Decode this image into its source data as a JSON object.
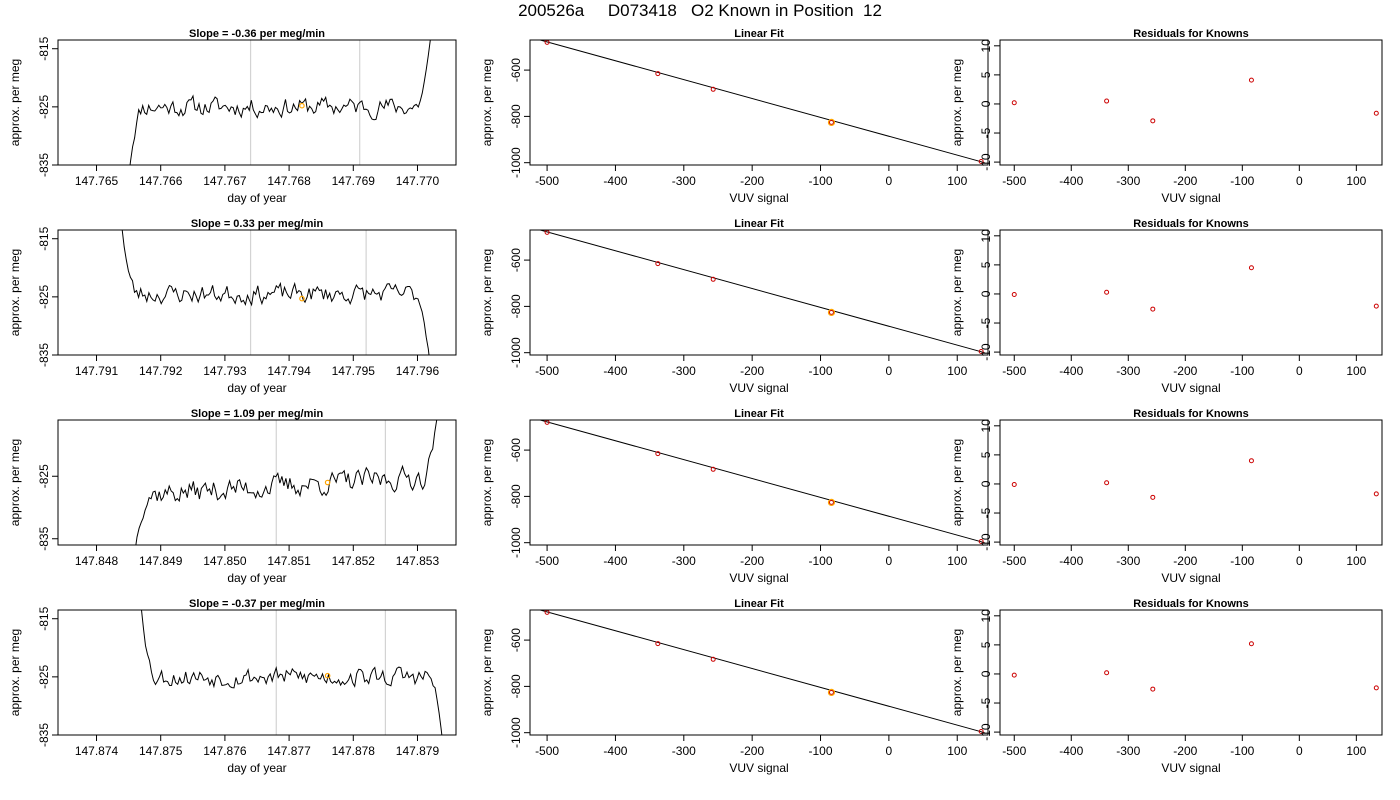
{
  "title": "200526a     D073418   O2 Known in Position  12",
  "colors": {
    "trace": "#000000",
    "marker": "#FFA500",
    "point": "#CC0000",
    "vline": "#D3D3D3",
    "axis": "#000000"
  },
  "chart_data": [
    {
      "type": "line",
      "panel": "time-series",
      "row": 1,
      "title": "Slope =  -0.36  per meg/min",
      "xlabel": "day of year",
      "ylabel": "approx. per meg",
      "xlim": [
        147.7644,
        147.7706
      ],
      "ylim": [
        -835,
        -813.5
      ],
      "xticks": [
        147.765,
        147.766,
        147.767,
        147.768,
        147.769,
        147.77
      ],
      "xtick_labels": [
        "147.765",
        "147.766",
        "147.767",
        "147.768",
        "147.769",
        "147.770"
      ],
      "yticks": [
        -815,
        -825,
        -835
      ],
      "ytick_labels": [
        "-815",
        "-825",
        "-835"
      ],
      "vlines": [
        147.7674,
        147.7691
      ],
      "series": [
        {
          "x_start": 147.7655,
          "x_end": 147.7702,
          "mean": -825.0,
          "amp": 2.0,
          "trend": 0.0,
          "start": -837,
          "end": -813.5,
          "seed": 11
        }
      ],
      "marker": {
        "x": 147.7682,
        "y": -824.8
      }
    },
    {
      "type": "scatter",
      "panel": "linear-fit",
      "row": 1,
      "title": "Linear Fit",
      "xlabel": "VUV signal",
      "ylabel": "approx. per meg",
      "xlim": [
        -525,
        145
      ],
      "ylim": [
        -1010,
        -470
      ],
      "xticks": [
        -500,
        -400,
        -300,
        -200,
        -100,
        0,
        100
      ],
      "xtick_labels": [
        "-500",
        "-400",
        "-300",
        "-200",
        "-100",
        "0",
        "100"
      ],
      "yticks": [
        -600,
        -800,
        -1000
      ],
      "ytick_labels": [
        "-600",
        "-800",
        "-1000"
      ],
      "x": [
        -500,
        -338,
        -257,
        -84,
        135
      ],
      "y": [
        -480,
        -615,
        -683,
        -826,
        -995
      ],
      "fit_line": {
        "x": [
          -510,
          140
        ],
        "y": [
          -470,
          -1000
        ]
      },
      "highlight": {
        "x": -84,
        "y": -826
      }
    },
    {
      "type": "scatter",
      "panel": "residuals",
      "row": 1,
      "title": "Residuals for Knowns",
      "xlabel": "VUV signal",
      "ylabel": "approx. per meg",
      "xlim": [
        -525,
        145
      ],
      "ylim": [
        -10.5,
        11
      ],
      "xticks": [
        -500,
        -400,
        -300,
        -200,
        -100,
        0,
        100
      ],
      "xtick_labels": [
        "-500",
        "-400",
        "-300",
        "-200",
        "-100",
        "0",
        "100"
      ],
      "yticks": [
        10,
        5,
        0,
        -5,
        -10
      ],
      "ytick_labels": [
        "10",
        "5",
        "0",
        "-5",
        "-10"
      ],
      "x": [
        -500,
        -338,
        -257,
        -84,
        135
      ],
      "y": [
        0.2,
        0.5,
        -2.9,
        4.1,
        -1.6
      ]
    },
    {
      "type": "line",
      "panel": "time-series",
      "row": 2,
      "title": "Slope =  0.33  per meg/min",
      "xlabel": "day of year",
      "ylabel": "approx. per meg",
      "xlim": [
        147.7904,
        147.7966
      ],
      "ylim": [
        -835,
        -813.5
      ],
      "xticks": [
        147.791,
        147.792,
        147.793,
        147.794,
        147.795,
        147.796
      ],
      "xtick_labels": [
        "147.791",
        "147.792",
        "147.793",
        "147.794",
        "147.795",
        "147.796"
      ],
      "yticks": [
        -815,
        -825,
        -835
      ],
      "ytick_labels": [
        "-815",
        "-825",
        "-835"
      ],
      "vlines": [
        147.7934,
        147.7952
      ],
      "series": [
        {
          "x_start": 147.7914,
          "x_end": 147.7962,
          "mean": -824.5,
          "amp": 2.0,
          "trend": 0.0,
          "start": -813.5,
          "end": -837,
          "seed": 23
        }
      ],
      "marker": {
        "x": 147.7942,
        "y": -825.3
      }
    },
    {
      "type": "scatter",
      "panel": "linear-fit",
      "row": 2,
      "title": "Linear Fit",
      "xlabel": "VUV signal",
      "ylabel": "approx. per meg",
      "xlim": [
        -525,
        145
      ],
      "ylim": [
        -1010,
        -470
      ],
      "xticks": [
        -500,
        -400,
        -300,
        -200,
        -100,
        0,
        100
      ],
      "xtick_labels": [
        "-500",
        "-400",
        "-300",
        "-200",
        "-100",
        "0",
        "100"
      ],
      "yticks": [
        -600,
        -800,
        -1000
      ],
      "ytick_labels": [
        "-600",
        "-800",
        "-1000"
      ],
      "x": [
        -500,
        -338,
        -257,
        -84,
        135
      ],
      "y": [
        -480,
        -615,
        -683,
        -826,
        -995
      ],
      "fit_line": {
        "x": [
          -510,
          140
        ],
        "y": [
          -470,
          -1000
        ]
      },
      "highlight": {
        "x": -84,
        "y": -826
      }
    },
    {
      "type": "scatter",
      "panel": "residuals",
      "row": 2,
      "title": "Residuals for Knowns",
      "xlabel": "VUV signal",
      "ylabel": "approx. per meg",
      "xlim": [
        -525,
        145
      ],
      "ylim": [
        -10.5,
        11
      ],
      "xticks": [
        -500,
        -400,
        -300,
        -200,
        -100,
        0,
        100
      ],
      "xtick_labels": [
        "-500",
        "-400",
        "-300",
        "-200",
        "-100",
        "0",
        "100"
      ],
      "yticks": [
        10,
        5,
        0,
        -5,
        -10
      ],
      "ytick_labels": [
        "10",
        "5",
        "0",
        "-5",
        "-10"
      ],
      "x": [
        -500,
        -338,
        -257,
        -84,
        135
      ],
      "y": [
        -0.1,
        0.3,
        -2.6,
        4.5,
        -2.1
      ]
    },
    {
      "type": "line",
      "panel": "time-series",
      "row": 3,
      "title": "Slope =  1.09  per meg/min",
      "xlabel": "day of year",
      "ylabel": "approx. per meg",
      "xlim": [
        147.8474,
        147.8536
      ],
      "ylim": [
        -836,
        -816
      ],
      "xticks": [
        147.848,
        147.849,
        147.85,
        147.851,
        147.852,
        147.853
      ],
      "xtick_labels": [
        "147.848",
        "147.849",
        "147.850",
        "147.851",
        "147.852",
        "147.853"
      ],
      "yticks": [
        -825,
        -835
      ],
      "ytick_labels": [
        "-825",
        "-835"
      ],
      "vlines": [
        147.8508,
        147.8525
      ],
      "series": [
        {
          "x_start": 147.8486,
          "x_end": 147.8533,
          "mean": -826.5,
          "amp": 2.2,
          "trend": 3.0,
          "start": -837,
          "end": -816,
          "seed": 37
        }
      ],
      "marker": {
        "x": 147.8516,
        "y": -826.0
      }
    },
    {
      "type": "scatter",
      "panel": "linear-fit",
      "row": 3,
      "title": "Linear Fit",
      "xlabel": "VUV signal",
      "ylabel": "approx. per meg",
      "xlim": [
        -525,
        145
      ],
      "ylim": [
        -1010,
        -470
      ],
      "xticks": [
        -500,
        -400,
        -300,
        -200,
        -100,
        0,
        100
      ],
      "xtick_labels": [
        "-500",
        "-400",
        "-300",
        "-200",
        "-100",
        "0",
        "100"
      ],
      "yticks": [
        -600,
        -800,
        -1000
      ],
      "ytick_labels": [
        "-600",
        "-800",
        "-1000"
      ],
      "x": [
        -500,
        -338,
        -257,
        -84,
        135
      ],
      "y": [
        -480,
        -615,
        -683,
        -826,
        -995
      ],
      "fit_line": {
        "x": [
          -510,
          140
        ],
        "y": [
          -470,
          -1000
        ]
      },
      "highlight": {
        "x": -84,
        "y": -826
      }
    },
    {
      "type": "scatter",
      "panel": "residuals",
      "row": 3,
      "title": "Residuals for Knowns",
      "xlabel": "VUV signal",
      "ylabel": "approx. per meg",
      "xlim": [
        -525,
        145
      ],
      "ylim": [
        -10.5,
        11
      ],
      "xticks": [
        -500,
        -400,
        -300,
        -200,
        -100,
        0,
        100
      ],
      "xtick_labels": [
        "-500",
        "-400",
        "-300",
        "-200",
        "-100",
        "0",
        "100"
      ],
      "yticks": [
        10,
        5,
        0,
        -5,
        -10
      ],
      "ytick_labels": [
        "10",
        "5",
        "0",
        "-5",
        "-10"
      ],
      "x": [
        -500,
        -338,
        -257,
        -84,
        135
      ],
      "y": [
        -0.1,
        0.2,
        -2.3,
        4.0,
        -1.7
      ]
    },
    {
      "type": "line",
      "panel": "time-series",
      "row": 4,
      "title": "Slope =  -0.37  per meg/min",
      "xlabel": "day of year",
      "ylabel": "approx. per meg",
      "xlim": [
        147.8734,
        147.8796
      ],
      "ylim": [
        -835,
        -813.5
      ],
      "xticks": [
        147.874,
        147.875,
        147.876,
        147.877,
        147.878,
        147.879
      ],
      "xtick_labels": [
        "147.874",
        "147.875",
        "147.876",
        "147.877",
        "147.878",
        "147.879"
      ],
      "yticks": [
        -815,
        -825,
        -835
      ],
      "ytick_labels": [
        "-815",
        "-825",
        "-835"
      ],
      "vlines": [
        147.8768,
        147.8785
      ],
      "series": [
        {
          "x_start": 147.8747,
          "x_end": 147.8794,
          "mean": -825.0,
          "amp": 2.0,
          "trend": 0.0,
          "start": -813.5,
          "end": -837,
          "seed": 53
        }
      ],
      "marker": {
        "x": 147.8776,
        "y": -824.8
      }
    },
    {
      "type": "scatter",
      "panel": "linear-fit",
      "row": 4,
      "title": "Linear Fit",
      "xlabel": "VUV signal",
      "ylabel": "approx. per meg",
      "xlim": [
        -525,
        145
      ],
      "ylim": [
        -1010,
        -470
      ],
      "xticks": [
        -500,
        -400,
        -300,
        -200,
        -100,
        0,
        100
      ],
      "xtick_labels": [
        "-500",
        "-400",
        "-300",
        "-200",
        "-100",
        "0",
        "100"
      ],
      "yticks": [
        -600,
        -800,
        -1000
      ],
      "ytick_labels": [
        "-600",
        "-800",
        "-1000"
      ],
      "x": [
        -500,
        -338,
        -257,
        -84,
        135
      ],
      "y": [
        -480,
        -615,
        -683,
        -826,
        -995
      ],
      "fit_line": {
        "x": [
          -510,
          140
        ],
        "y": [
          -470,
          -1000
        ]
      },
      "highlight": {
        "x": -84,
        "y": -826
      }
    },
    {
      "type": "scatter",
      "panel": "residuals",
      "row": 4,
      "title": "Residuals for Knowns",
      "xlabel": "VUV signal",
      "ylabel": "approx. per meg",
      "xlim": [
        -525,
        145
      ],
      "ylim": [
        -10.5,
        11
      ],
      "xticks": [
        -500,
        -400,
        -300,
        -200,
        -100,
        0,
        100
      ],
      "xtick_labels": [
        "-500",
        "-400",
        "-300",
        "-200",
        "-100",
        "0",
        "100"
      ],
      "yticks": [
        10,
        5,
        0,
        -5,
        -10
      ],
      "ytick_labels": [
        "10",
        "5",
        "0",
        "-5",
        "-10"
      ],
      "x": [
        -500,
        -338,
        -257,
        -84,
        135
      ],
      "y": [
        -0.2,
        0.2,
        -2.6,
        5.2,
        -2.4
      ]
    }
  ]
}
